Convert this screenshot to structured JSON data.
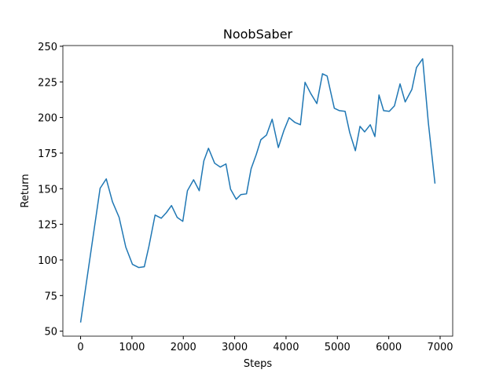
{
  "chart_data": {
    "type": "line",
    "title": "NoobSaber",
    "xlabel": "Steps",
    "ylabel": "Return",
    "x": [
      0,
      380,
      500,
      620,
      750,
      880,
      1010,
      1130,
      1240,
      1330,
      1450,
      1570,
      1670,
      1770,
      1880,
      1990,
      2080,
      2200,
      2310,
      2400,
      2490,
      2610,
      2720,
      2830,
      2920,
      3030,
      3120,
      3230,
      3320,
      3420,
      3510,
      3620,
      3730,
      3850,
      3960,
      4060,
      4170,
      4280,
      4370,
      4480,
      4600,
      4710,
      4800,
      4940,
      5040,
      5150,
      5240,
      5350,
      5440,
      5530,
      5640,
      5730,
      5810,
      5900,
      6010,
      6110,
      6220,
      6320,
      6450,
      6540,
      6660,
      6770,
      6900
    ],
    "values": [
      56.1,
      150.3,
      156.9,
      140.9,
      129.9,
      109,
      96.9,
      94.7,
      95.2,
      109.5,
      131.5,
      129.3,
      133.2,
      138.2,
      129.9,
      127.1,
      148.6,
      156.3,
      148.6,
      169.6,
      178.4,
      167.9,
      165.2,
      167.4,
      149.7,
      142.6,
      145.9,
      146.4,
      164.0,
      174.0,
      184.4,
      187.7,
      198.8,
      178.9,
      191.0,
      199.9,
      196.6,
      194.9,
      224.7,
      216.9,
      209.8,
      230.7,
      229.1,
      206.5,
      204.8,
      204.3,
      189.4,
      176.7,
      193.8,
      189.9,
      194.9,
      186.6,
      215.8,
      204.8,
      204.3,
      208.1,
      223.6,
      210.9,
      219.7,
      235.1,
      241.2,
      196.6,
      153.6
    ],
    "color": "#1f77b4",
    "xlim": [
      -345,
      7245
    ],
    "xticks": [
      0,
      1000,
      2000,
      3000,
      4000,
      5000,
      6000,
      7000
    ],
    "ylim": [
      46.5,
      250.5
    ],
    "yticks": [
      50,
      75,
      100,
      125,
      150,
      175,
      200,
      225,
      250
    ]
  }
}
